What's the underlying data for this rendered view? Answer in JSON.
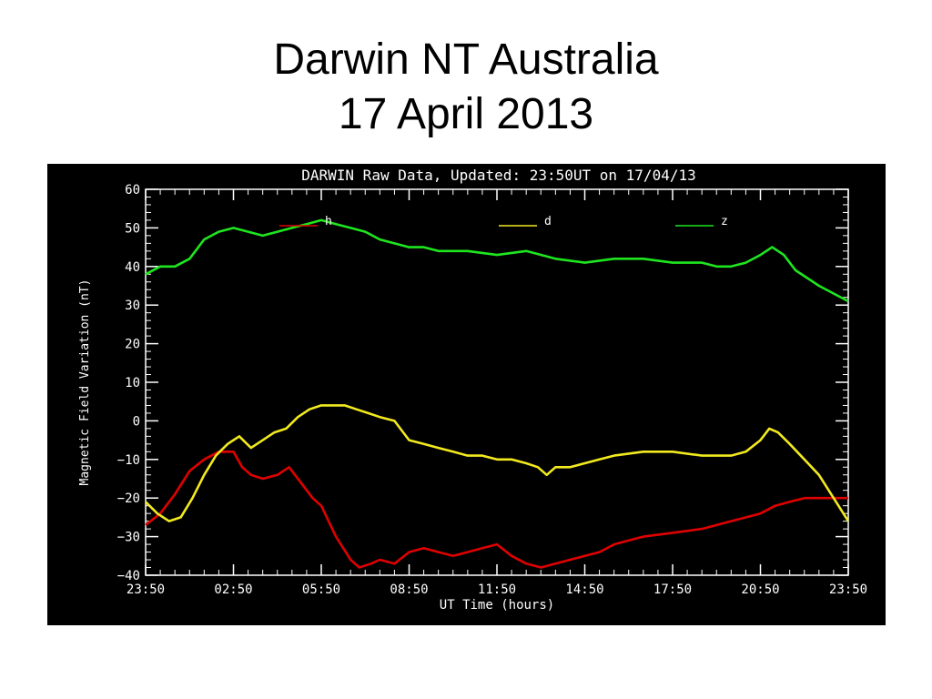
{
  "slide": {
    "title_line1": "Darwin NT Australia",
    "title_line2": "17 April 2013"
  },
  "colors": {
    "page_background": "#ffffff",
    "chart_background": "#000000",
    "axes": "#ffffff",
    "h": "#e00000",
    "d": "#f2ea1e",
    "z": "#1ee61e"
  },
  "chart_data": {
    "type": "line",
    "title": "DARWIN Raw Data, Updated: 23:50UT on 17/04/13",
    "xlabel": "UT Time (hours)",
    "ylabel": "Magnetic Field Variation (nT)",
    "xlim": [
      0,
      24
    ],
    "ylim": [
      -40,
      60
    ],
    "x_ticks": [
      0,
      3,
      6,
      9,
      12,
      15,
      18,
      21,
      24
    ],
    "x_tick_labels": [
      "23:50",
      "02:50",
      "05:50",
      "08:50",
      "11:50",
      "14:50",
      "17:50",
      "20:50",
      "23:50"
    ],
    "y_ticks": [
      -40,
      -30,
      -20,
      -10,
      0,
      10,
      20,
      30,
      40,
      50,
      60
    ],
    "y_tick_labels": [
      "−40",
      "−30",
      "−20",
      "−10",
      "0",
      "10",
      "20",
      "30",
      "40",
      "50",
      "60"
    ],
    "grid": false,
    "legend_position": "top",
    "series": [
      {
        "name": "h",
        "color": "#e00000",
        "x": [
          0,
          0.5,
          1,
          1.5,
          2,
          2.5,
          3,
          3.3,
          3.6,
          4,
          4.5,
          4.9,
          5.3,
          5.7,
          6,
          6.5,
          7,
          7.3,
          7.7,
          8,
          8.5,
          9,
          9.5,
          10,
          10.5,
          11,
          11.5,
          12,
          12.5,
          13,
          13.5,
          14,
          14.5,
          15,
          15.5,
          16,
          16.5,
          17,
          18,
          19,
          20,
          21,
          21.5,
          22,
          22.5,
          23,
          23.5,
          24
        ],
        "values": [
          -27,
          -24,
          -19,
          -13,
          -10,
          -8,
          -8,
          -12,
          -14,
          -15,
          -14,
          -12,
          -16,
          -20,
          -22,
          -30,
          -36,
          -38,
          -37,
          -36,
          -37,
          -34,
          -33,
          -34,
          -35,
          -34,
          -33,
          -32,
          -35,
          -37,
          -38,
          -37,
          -36,
          -35,
          -34,
          -32,
          -31,
          -30,
          -29,
          -28,
          -26,
          -24,
          -22,
          -21,
          -20,
          -20,
          -20,
          -20
        ]
      },
      {
        "name": "d",
        "color": "#f2ea1e",
        "x": [
          0,
          0.4,
          0.8,
          1.2,
          1.6,
          2,
          2.4,
          2.8,
          3.2,
          3.6,
          4,
          4.4,
          4.8,
          5.2,
          5.6,
          6,
          6.4,
          6.8,
          7.2,
          7.6,
          8,
          8.5,
          9,
          9.5,
          10,
          10.5,
          11,
          11.5,
          12,
          12.5,
          13,
          13.4,
          13.7,
          14,
          14.5,
          15,
          15.5,
          16,
          17,
          18,
          19,
          20,
          20.5,
          21,
          21.3,
          21.6,
          22,
          22.5,
          23,
          23.5,
          24
        ],
        "values": [
          -21,
          -24,
          -26,
          -25,
          -20,
          -14,
          -9,
          -6,
          -4,
          -7,
          -5,
          -3,
          -2,
          1,
          3,
          4,
          4,
          4,
          3,
          2,
          1,
          0,
          -5,
          -6,
          -7,
          -8,
          -9,
          -9,
          -10,
          -10,
          -11,
          -12,
          -14,
          -12,
          -12,
          -11,
          -10,
          -9,
          -8,
          -8,
          -9,
          -9,
          -8,
          -5,
          -2,
          -3,
          -6,
          -10,
          -14,
          -20,
          -26
        ]
      },
      {
        "name": "z",
        "color": "#1ee61e",
        "x": [
          0,
          0.5,
          1,
          1.5,
          2,
          2.5,
          3,
          3.5,
          4,
          4.5,
          5,
          5.5,
          6,
          6.5,
          7,
          7.5,
          8,
          8.5,
          9,
          9.5,
          10,
          11,
          12,
          13,
          14,
          15,
          16,
          17,
          18,
          19,
          19.5,
          20,
          20.5,
          21,
          21.4,
          21.8,
          22.2,
          22.6,
          23,
          23.5,
          24
        ],
        "values": [
          38,
          40,
          40,
          42,
          47,
          49,
          50,
          49,
          48,
          49,
          50,
          51,
          52,
          51,
          50,
          49,
          47,
          46,
          45,
          45,
          44,
          44,
          43,
          44,
          42,
          41,
          42,
          42,
          41,
          41,
          40,
          40,
          41,
          43,
          45,
          43,
          39,
          37,
          35,
          33,
          31
        ]
      }
    ]
  }
}
